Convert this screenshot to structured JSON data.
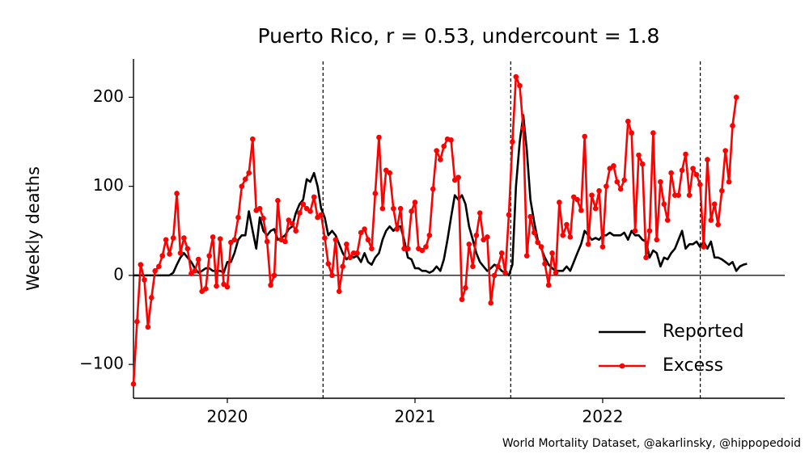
{
  "chart_data": {
    "type": "line",
    "title": "Puerto Rico, r = 0.53, undercount = 1.8",
    "y_label": "Weekly deaths",
    "footer": "World Mortality Dataset, @akarlinsky, @hippopedoid",
    "xlim": [
      2019.5,
      2022.97
    ],
    "ylim": [
      -138,
      243
    ],
    "xticks": [
      2020,
      2021,
      2022
    ],
    "yticks": [
      {
        "value": -100,
        "label": "−100"
      },
      0,
      100,
      200
    ],
    "zero_line": 0,
    "vlines": [
      2020.51,
      2021.51,
      2022.52
    ],
    "legend": "lower right",
    "x": [
      2019.5,
      2019.519,
      2019.538,
      2019.558,
      2019.577,
      2019.596,
      2019.615,
      2019.635,
      2019.654,
      2019.673,
      2019.692,
      2019.712,
      2019.731,
      2019.75,
      2019.769,
      2019.788,
      2019.808,
      2019.827,
      2019.846,
      2019.865,
      2019.885,
      2019.904,
      2019.923,
      2019.942,
      2019.962,
      2019.981,
      2020,
      2020.019,
      2020.038,
      2020.058,
      2020.077,
      2020.096,
      2020.115,
      2020.135,
      2020.154,
      2020.173,
      2020.192,
      2020.212,
      2020.231,
      2020.25,
      2020.269,
      2020.288,
      2020.308,
      2020.327,
      2020.346,
      2020.365,
      2020.385,
      2020.404,
      2020.423,
      2020.442,
      2020.462,
      2020.481,
      2020.5,
      2020.519,
      2020.538,
      2020.558,
      2020.577,
      2020.596,
      2020.615,
      2020.635,
      2020.654,
      2020.673,
      2020.692,
      2020.712,
      2020.731,
      2020.75,
      2020.769,
      2020.788,
      2020.808,
      2020.827,
      2020.846,
      2020.865,
      2020.885,
      2020.904,
      2020.923,
      2020.942,
      2020.962,
      2020.981,
      2021,
      2021.019,
      2021.038,
      2021.058,
      2021.077,
      2021.096,
      2021.115,
      2021.135,
      2021.154,
      2021.173,
      2021.192,
      2021.212,
      2021.231,
      2021.25,
      2021.269,
      2021.288,
      2021.308,
      2021.327,
      2021.346,
      2021.365,
      2021.385,
      2021.404,
      2021.423,
      2021.442,
      2021.462,
      2021.481,
      2021.5,
      2021.519,
      2021.538,
      2021.558,
      2021.577,
      2021.596,
      2021.615,
      2021.635,
      2021.654,
      2021.673,
      2021.692,
      2021.712,
      2021.731,
      2021.75,
      2021.769,
      2021.788,
      2021.808,
      2021.827,
      2021.846,
      2021.865,
      2021.885,
      2021.904,
      2021.923,
      2021.942,
      2021.962,
      2021.981,
      2022,
      2022.019,
      2022.038,
      2022.058,
      2022.077,
      2022.096,
      2022.115,
      2022.135,
      2022.154,
      2022.173,
      2022.192,
      2022.212,
      2022.231,
      2022.25,
      2022.269,
      2022.288,
      2022.308,
      2022.327,
      2022.346,
      2022.365,
      2022.385,
      2022.404,
      2022.423,
      2022.442,
      2022.462,
      2022.481,
      2022.5,
      2022.519,
      2022.538,
      2022.558,
      2022.577,
      2022.596,
      2022.615,
      2022.635,
      2022.654,
      2022.673,
      2022.692,
      2022.712,
      2022.731,
      2022.75,
      2022.769
    ],
    "series": [
      {
        "name": "Reported",
        "color": "#000000",
        "markers": false,
        "values": [
          0,
          0,
          0,
          0,
          0,
          0,
          0,
          0,
          0,
          0,
          0,
          3,
          12,
          20,
          25,
          20,
          15,
          8,
          3,
          5,
          8,
          8,
          5,
          5,
          5,
          3,
          15,
          15,
          25,
          40,
          45,
          45,
          72,
          50,
          30,
          65,
          50,
          45,
          50,
          52,
          40,
          42,
          45,
          52,
          55,
          70,
          80,
          85,
          108,
          105,
          115,
          100,
          75,
          65,
          45,
          50,
          45,
          35,
          25,
          18,
          22,
          20,
          22,
          15,
          25,
          15,
          12,
          20,
          25,
          40,
          50,
          55,
          50,
          55,
          55,
          40,
          20,
          18,
          8,
          8,
          5,
          5,
          3,
          5,
          10,
          5,
          18,
          40,
          65,
          90,
          85,
          90,
          80,
          55,
          40,
          25,
          15,
          10,
          5,
          8,
          12,
          10,
          5,
          3,
          0,
          12,
          100,
          150,
          180,
          140,
          85,
          60,
          40,
          30,
          20,
          12,
          8,
          5,
          5,
          5,
          10,
          5,
          15,
          25,
          35,
          50,
          45,
          40,
          42,
          40,
          45,
          45,
          48,
          45,
          45,
          45,
          48,
          40,
          50,
          45,
          45,
          40,
          38,
          20,
          28,
          25,
          10,
          20,
          18,
          25,
          30,
          40,
          50,
          30,
          35,
          35,
          38,
          32,
          38,
          30,
          38,
          20,
          20,
          18,
          15,
          12,
          15,
          5,
          10,
          12,
          13
        ]
      },
      {
        "name": "Excess",
        "color": "#ff0000",
        "markers": true,
        "values": [
          -122,
          -52,
          12,
          -5,
          -58,
          -25,
          5,
          10,
          22,
          40,
          24,
          42,
          92,
          25,
          42,
          30,
          2,
          5,
          18,
          -18,
          -15,
          22,
          43,
          -12,
          41,
          -10,
          -13,
          37,
          40,
          65,
          100,
          108,
          115,
          153,
          73,
          75,
          64,
          38,
          -11,
          0,
          84,
          40,
          38,
          62,
          58,
          50,
          70,
          80,
          75,
          72,
          88,
          65,
          68,
          42,
          13,
          0,
          40,
          -18,
          10,
          35,
          20,
          25,
          25,
          48,
          52,
          40,
          30,
          92,
          155,
          75,
          118,
          115,
          75,
          52,
          75,
          30,
          30,
          72,
          82,
          30,
          28,
          32,
          45,
          97,
          140,
          130,
          145,
          153,
          152,
          107,
          110,
          -27,
          -14,
          35,
          10,
          45,
          70,
          40,
          43,
          -31,
          0,
          10,
          25,
          3,
          68,
          150,
          223,
          213,
          165,
          22,
          66,
          48,
          37,
          32,
          13,
          -11,
          25,
          3,
          82,
          45,
          57,
          43,
          88,
          85,
          73,
          156,
          35,
          90,
          75,
          95,
          32,
          100,
          120,
          123,
          105,
          97,
          107,
          173,
          160,
          50,
          135,
          125,
          20,
          50,
          160,
          40,
          105,
          80,
          62,
          115,
          90,
          90,
          118,
          136,
          90,
          120,
          113,
          102,
          32,
          130,
          62,
          80,
          57,
          95,
          140,
          105,
          168,
          200,
          null,
          null,
          null
        ]
      }
    ]
  }
}
